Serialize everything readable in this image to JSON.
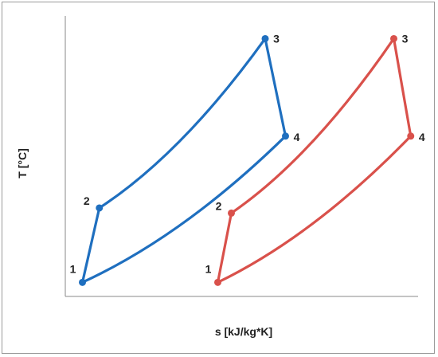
{
  "chart_data": {
    "type": "line",
    "title": "",
    "xlabel": "s [kJ/kg*K]",
    "ylabel": "T [°C]",
    "x_ticks": "none",
    "y_ticks": "none",
    "grid": false,
    "legend": "none",
    "series": [
      {
        "color": "#1f6fbf",
        "points": [
          {
            "label": "1",
            "s": 0.02,
            "T": 0.03
          },
          {
            "label": "2",
            "s": 0.07,
            "T": 0.32
          },
          {
            "label": "3",
            "s": 0.56,
            "T": 0.98
          },
          {
            "label": "4",
            "s": 0.62,
            "T": 0.6
          }
        ],
        "curved_segments": [
          [
            1,
            2
          ],
          [
            3,
            0
          ]
        ]
      },
      {
        "color": "#d9514b",
        "points": [
          {
            "label": "1",
            "s": 0.42,
            "T": 0.03
          },
          {
            "label": "2",
            "s": 0.46,
            "T": 0.3
          },
          {
            "label": "3",
            "s": 0.94,
            "T": 0.98
          },
          {
            "label": "4",
            "s": 0.99,
            "T": 0.6
          }
        ],
        "curved_segments": [
          [
            1,
            2
          ],
          [
            3,
            0
          ]
        ]
      }
    ]
  }
}
